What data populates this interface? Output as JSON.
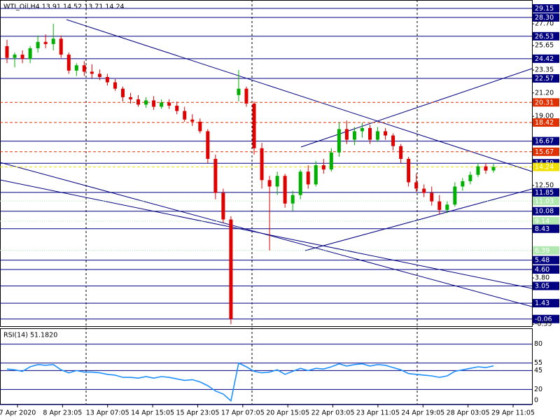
{
  "chart_data": [
    {
      "type": "candlestick",
      "title": "WTI_Oil,H4  13.91 14.52 13.71 14.24",
      "x_labels": [
        "7 Apr 2020",
        "8 Apr 23:05",
        "13 Apr 07:05",
        "14 Apr 15:05",
        "15 Apr 23:05",
        "17 Apr 07:05",
        "20 Apr 15:05",
        "22 Apr 03:05",
        "23 Apr 11:05",
        "24 Apr 19:05",
        "28 Apr 03:05",
        "29 Apr 11:05"
      ],
      "open": [
        25.6,
        24.5,
        24.8,
        24.4,
        25.4,
        26.0,
        25.8,
        26.3,
        24.8,
        23.3,
        23.8,
        23.2,
        23.0,
        22.7,
        22.2,
        21.6,
        20.8,
        20.6,
        20.1,
        20.5,
        19.9,
        20.3,
        20.0,
        19.5,
        18.7,
        18.5,
        17.6,
        15.0,
        11.8,
        9.3,
        21.0,
        21.6,
        20.2,
        16.0,
        13.0,
        12.4,
        13.4,
        10.8,
        11.6,
        13.8,
        12.6,
        14.4,
        14.0,
        15.6,
        17.8,
        16.8,
        17.6,
        17.9,
        16.8,
        17.6,
        17.2,
        16.2,
        15.0,
        12.8,
        12.2,
        11.8,
        11.0,
        10.2,
        10.7,
        12.4,
        12.9,
        13.5,
        14.3,
        13.91
      ],
      "high": [
        26.2,
        25.0,
        25.2,
        25.6,
        26.6,
        26.7,
        27.7,
        26.6,
        25.0,
        24.0,
        24.2,
        23.9,
        23.4,
        23.0,
        22.5,
        21.8,
        21.2,
        21.0,
        20.8,
        20.9,
        20.6,
        20.6,
        20.4,
        19.9,
        19.2,
        18.8,
        17.8,
        15.4,
        12.2,
        9.6,
        23.35,
        21.8,
        20.4,
        16.5,
        13.4,
        13.8,
        13.6,
        12.0,
        14.0,
        14.4,
        14.8,
        15.0,
        16.0,
        18.4,
        18.6,
        18.0,
        18.4,
        18.2,
        18.0,
        17.9,
        17.4,
        16.4,
        15.2,
        13.6,
        12.6,
        12.4,
        11.6,
        11.0,
        12.8,
        13.2,
        13.8,
        14.6,
        14.6,
        14.52
      ],
      "low": [
        24.0,
        23.6,
        24.0,
        24.0,
        25.0,
        25.4,
        25.2,
        24.5,
        23.0,
        22.8,
        22.8,
        22.6,
        22.4,
        21.9,
        21.4,
        20.4,
        20.2,
        19.9,
        19.8,
        19.6,
        19.7,
        19.7,
        19.2,
        18.5,
        18.1,
        17.4,
        14.6,
        11.2,
        9.0,
        -0.55,
        20.4,
        19.9,
        15.4,
        12.2,
        6.39,
        11.6,
        10.4,
        10.1,
        11.2,
        12.2,
        12.4,
        13.6,
        13.8,
        15.2,
        16.4,
        16.3,
        17.0,
        16.4,
        16.6,
        16.8,
        15.8,
        14.6,
        12.4,
        11.9,
        11.4,
        10.6,
        9.8,
        9.9,
        10.5,
        12.0,
        12.6,
        13.3,
        13.6,
        13.71
      ],
      "close": [
        24.5,
        24.8,
        24.4,
        25.4,
        26.0,
        25.8,
        26.3,
        24.8,
        23.3,
        23.8,
        23.2,
        23.0,
        22.7,
        22.2,
        21.6,
        20.8,
        20.6,
        20.1,
        20.5,
        19.9,
        20.3,
        20.0,
        19.5,
        18.7,
        18.5,
        17.6,
        15.0,
        11.8,
        9.3,
        -0.06,
        21.6,
        20.2,
        16.0,
        13.0,
        12.4,
        13.4,
        10.8,
        11.6,
        13.8,
        12.6,
        14.4,
        14.0,
        15.6,
        17.8,
        16.8,
        17.6,
        17.9,
        16.8,
        17.6,
        17.2,
        16.2,
        15.0,
        12.8,
        12.2,
        11.8,
        11.0,
        10.2,
        10.7,
        12.4,
        12.9,
        13.5,
        14.3,
        13.9,
        14.24
      ],
      "up_color": "#00b000",
      "down_color": "#e00000",
      "ylim": [
        -0.8,
        29.94
      ],
      "yticks": [
        {
          "value": 27.7,
          "label": "27.70"
        },
        {
          "value": 25.65,
          "label": "25.65"
        },
        {
          "value": 23.35,
          "label": "23.35"
        },
        {
          "value": 21.2,
          "label": "21.20"
        },
        {
          "value": 19,
          "label": "19.00"
        },
        {
          "value": 12.5,
          "label": "12.50"
        },
        {
          "value": 3.8,
          "label": "3.80"
        },
        {
          "value": -0.55,
          "label": "-0.55"
        }
      ],
      "levels": [
        {
          "value": 29.15,
          "color": "#000080",
          "style": "solid"
        },
        {
          "value": 28.3,
          "label": "28.30",
          "color": "#000080",
          "style": "solid"
        },
        {
          "value": 26.53,
          "color": "#000080",
          "style": "solid"
        },
        {
          "value": 24.42,
          "color": "#000080",
          "style": "solid"
        },
        {
          "value": 22.57,
          "color": "#000080",
          "style": "solid"
        },
        {
          "value": 20.31,
          "color": "#e03000",
          "style": "dash"
        },
        {
          "value": 18.42,
          "color": "#e03000",
          "style": "dash"
        },
        {
          "value": 16.67,
          "color": "#000080",
          "style": "solid"
        },
        {
          "value": 15.67,
          "color": "#e03000",
          "style": "dash"
        },
        {
          "value": 14.59,
          "color": "#000080",
          "style": "solid"
        },
        {
          "value": 14.24,
          "color": "#f0e000",
          "style": "dash"
        },
        {
          "value": 11.85,
          "color": "#000080",
          "style": "solid"
        },
        {
          "value": 11.03,
          "color": "#b0e8b0",
          "style": "dot"
        },
        {
          "value": 10.08,
          "color": "#000080",
          "style": "solid"
        },
        {
          "value": 9.14,
          "color": "#b0e8b0",
          "style": "dot"
        },
        {
          "value": 8.43,
          "color": "#000080",
          "style": "solid"
        },
        {
          "value": 6.39,
          "color": "#b0e8b0",
          "style": "dot"
        },
        {
          "value": 5.48,
          "color": "#000080",
          "style": "solid"
        },
        {
          "value": 4.6,
          "label": "4.60",
          "color": "#000080",
          "style": "solid"
        },
        {
          "value": 3.05,
          "color": "#000080",
          "style": "solid"
        },
        {
          "value": 1.43,
          "color": "#000080",
          "style": "solid"
        },
        {
          "value": -0.06,
          "color": "#000080",
          "style": "solid"
        }
      ]
    },
    {
      "type": "line",
      "title": "RSI(14) 51.1820",
      "color": "#1e90ff",
      "values": [
        47,
        46,
        44,
        50,
        53,
        52,
        53,
        46,
        42,
        45,
        43,
        43,
        42,
        40,
        39,
        36,
        36,
        35,
        37,
        35,
        37,
        36,
        34,
        32,
        33,
        30,
        25,
        18,
        14,
        5,
        55,
        50,
        44,
        42,
        43,
        46,
        40,
        44,
        48,
        45,
        48,
        47,
        50,
        54,
        51,
        53,
        54,
        51,
        53,
        52,
        49,
        46,
        41,
        40,
        39,
        38,
        36,
        38,
        44,
        46,
        48,
        50,
        49,
        51.182
      ],
      "ylim": [
        0,
        100
      ],
      "yticks": [
        80,
        55,
        45,
        20,
        0
      ]
    }
  ]
}
